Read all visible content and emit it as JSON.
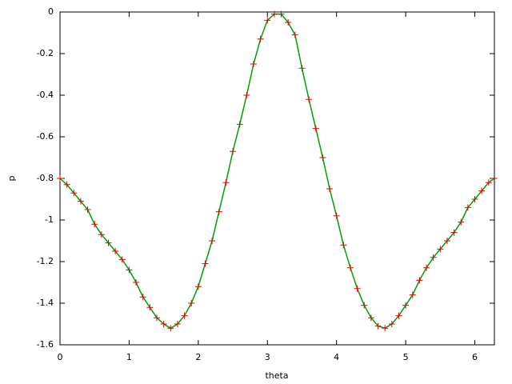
{
  "chart_data": {
    "type": "line",
    "x_label": "theta",
    "y_label": "p",
    "x": [
      0,
      0.1,
      0.2,
      0.3,
      0.4,
      0.5,
      0.6,
      0.7,
      0.8,
      0.9,
      1.0,
      1.1,
      1.2,
      1.3,
      1.4,
      1.5,
      1.6,
      1.7,
      1.8,
      1.9,
      2.0,
      2.1,
      2.2,
      2.3,
      2.4,
      2.5,
      2.6,
      2.7,
      2.8,
      2.9,
      3.0,
      3.1,
      3.2,
      3.3,
      3.4,
      3.5,
      3.6,
      3.7,
      3.8,
      3.9,
      4.0,
      4.1,
      4.2,
      4.3,
      4.4,
      4.5,
      4.6,
      4.7,
      4.8,
      4.9,
      5.0,
      5.1,
      5.2,
      5.3,
      5.4,
      5.5,
      5.6,
      5.7,
      5.8,
      5.9,
      6.0,
      6.1,
      6.2,
      6.28
    ],
    "series": [
      {
        "line_color": "#00a000",
        "point_color": "#e00000",
        "values": [
          -0.8,
          -0.83,
          -0.87,
          -0.91,
          -0.95,
          -1.02,
          -1.07,
          -1.11,
          -1.15,
          -1.19,
          -1.24,
          -1.3,
          -1.37,
          -1.42,
          -1.47,
          -1.5,
          -1.52,
          -1.5,
          -1.46,
          -1.4,
          -1.32,
          -1.21,
          -1.1,
          -0.96,
          -0.82,
          -0.67,
          -0.54,
          -0.4,
          -0.25,
          -0.13,
          -0.04,
          -0.01,
          -0.01,
          -0.05,
          -0.11,
          -0.27,
          -0.42,
          -0.56,
          -0.7,
          -0.85,
          -0.98,
          -1.12,
          -1.23,
          -1.33,
          -1.41,
          -1.47,
          -1.51,
          -1.52,
          -1.5,
          -1.46,
          -1.41,
          -1.36,
          -1.29,
          -1.23,
          -1.18,
          -1.14,
          -1.1,
          -1.06,
          -1.01,
          -0.94,
          -0.9,
          -0.86,
          -0.82,
          -0.8
        ]
      }
    ],
    "xlim": [
      0,
      6.2832
    ],
    "ylim": [
      -1.6,
      0
    ],
    "xticks": [
      0,
      1,
      2,
      3,
      4,
      5,
      6
    ],
    "yticks": [
      0,
      -0.2,
      -0.4,
      -0.6,
      -0.8,
      -1,
      -1.2,
      -1.4,
      -1.6
    ]
  }
}
